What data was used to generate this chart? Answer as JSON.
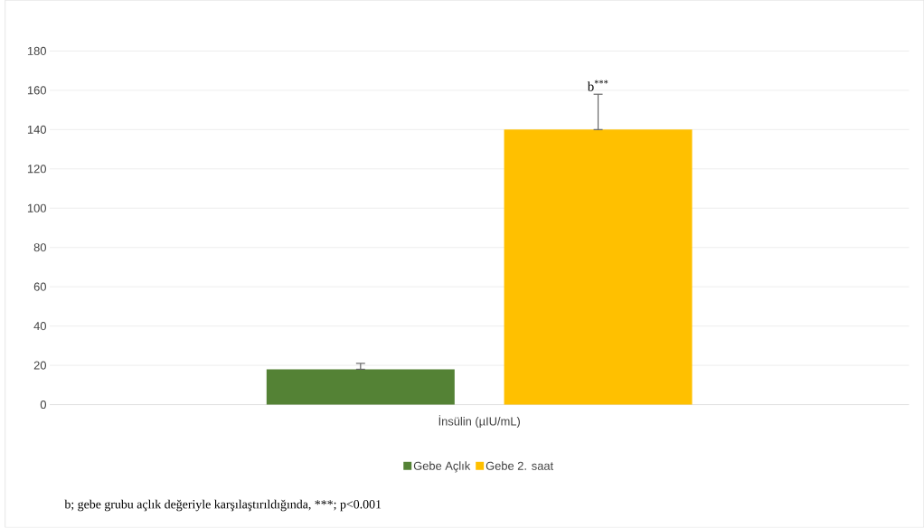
{
  "chart_data": {
    "type": "bar",
    "categories": [
      "İnsülin (µIU/mL)"
    ],
    "series": [
      {
        "name": "Gebe Açlık",
        "color": "#548235",
        "values": [
          18
        ],
        "errors": [
          [
            18,
            21
          ]
        ]
      },
      {
        "name": "Gebe 2. saat",
        "color": "#ffc000",
        "values": [
          140
        ],
        "errors": [
          [
            140,
            158
          ]
        ]
      }
    ],
    "ylim": [
      0,
      180
    ],
    "yticks": [
      0,
      20,
      40,
      60,
      80,
      100,
      120,
      140,
      160,
      180
    ],
    "grid": "y",
    "legend": "bottom",
    "annotations": [
      "b$^{***}$",
      "b; gebe grubu açlık değeriyle karşılaştırıldığında, ***; p<0.001"
    ]
  }
}
